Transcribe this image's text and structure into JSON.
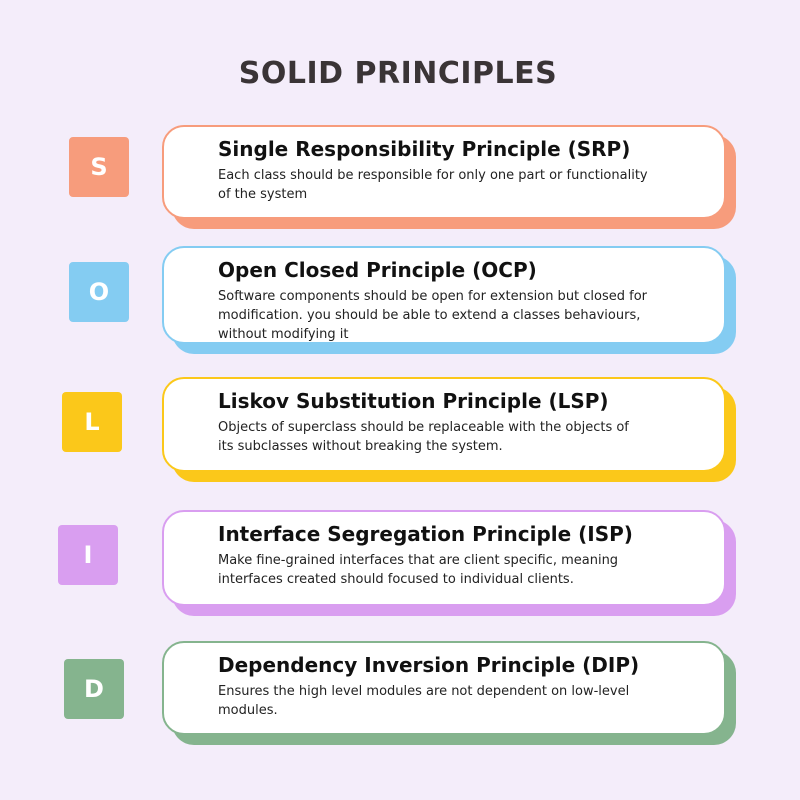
{
  "title": "SOLID PRINCIPLES",
  "principles": [
    {
      "letter": "S",
      "name": "Single Responsibility Principle (SRP)",
      "description": "Each class should be responsible for only one part or functionality\nof the system",
      "color": "#f79c7c"
    },
    {
      "letter": "O",
      "name": "Open Closed Principle (OCP)",
      "description": "Software components should be open for extension but closed for\nmodification. you should be able to extend a classes behaviours,\nwithout modifying it",
      "color": "#84ccf2"
    },
    {
      "letter": "L",
      "name": "Liskov Substitution Principle (LSP)",
      "description": "Objects of superclass should be replaceable with the objects of\nits subclasses without breaking the system.",
      "color": "#fbc81a"
    },
    {
      "letter": "I",
      "name": "Interface Segregation Principle (ISP)",
      "description": "Make fine-grained interfaces that are client specific, meaning\n interfaces created should focused to individual clients.",
      "color": "#d99ef0"
    },
    {
      "letter": "D",
      "name": "Dependency Inversion Principle (DIP)",
      "description": "Ensures the high level modules are not dependent on low-level\nmodules.",
      "color": "#85b48e"
    }
  ]
}
